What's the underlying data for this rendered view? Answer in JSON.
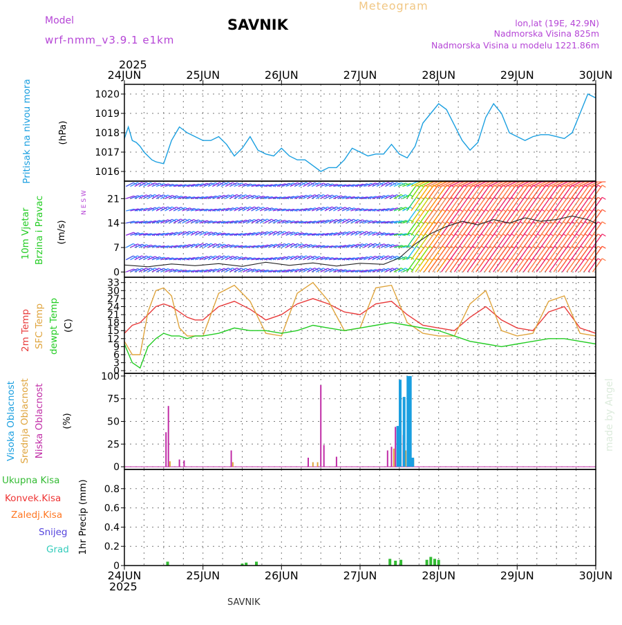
{
  "header": {
    "model_label": "Model",
    "model_name": "wrf-nmm_v3.9.1  e1km",
    "station": "SAVNIK",
    "product": "Meteogram",
    "coords": "lon,lat (19E, 42.9N)",
    "elevation": "Nadmorska Visina 825m",
    "model_elevation": "Nadmorska Visina u modelu 1221.86m",
    "year_top": "2025",
    "year_bottom": "2025",
    "footer_station": "SAVNIK",
    "credit": "made by Angel"
  },
  "colors": {
    "pressure": "#1a9fe0",
    "temp2m": "#e83a3a",
    "sfc": "#dfa43c",
    "dewpt": "#22cc22",
    "high_cloud": "#1a9fe0",
    "mid_cloud": "#dfa43c",
    "low_cloud": "#c02ca6",
    "total_precip": "#33bb33",
    "conv_precip": "#ee3333",
    "frz_precip": "#ff7722",
    "snow": "#5544dd",
    "hail": "#33ccbb",
    "label_purple": "#b545d6"
  },
  "chart_data": [
    {
      "type": "line",
      "name": "pressure",
      "x_ticks": [
        "24JUN",
        "25JUN",
        "26JUN",
        "27JUN",
        "28JUN",
        "29JUN",
        "30JUN"
      ],
      "ylabel_main": "Pritisak na nivou mora",
      "ylabel_unit": "(hPa)",
      "ylim": [
        1015.5,
        1020.5
      ],
      "y_ticks": [
        "1016",
        "1017",
        "1018",
        "1019",
        "1020"
      ],
      "y_tick_values": [
        1016,
        1017,
        1018,
        1019,
        1020
      ],
      "grid": true,
      "series": [
        {
          "key": "pressure",
          "x": [
            0,
            0.05,
            0.1,
            0.15,
            0.2,
            0.25,
            0.3,
            0.35,
            0.4,
            0.5,
            0.55,
            0.6,
            0.7,
            0.8,
            0.9,
            1.0,
            1.1,
            1.2,
            1.3,
            1.4,
            1.5,
            1.6,
            1.7,
            1.8,
            1.9,
            2.0,
            2.1,
            2.2,
            2.3,
            2.4,
            2.5,
            2.6,
            2.7,
            2.8,
            2.9,
            3.0,
            3.1,
            3.2,
            3.3,
            3.4,
            3.5,
            3.6,
            3.7,
            3.8,
            3.9,
            4.0,
            4.1,
            4.2,
            4.3,
            4.4,
            4.5,
            4.6,
            4.7,
            4.8,
            4.9,
            5.0,
            5.1,
            5.2,
            5.3,
            5.4,
            5.5,
            5.6,
            5.7,
            5.8,
            5.9,
            6.0
          ],
          "values": [
            1017.7,
            1018.3,
            1017.6,
            1017.5,
            1017.3,
            1017.0,
            1016.8,
            1016.6,
            1016.5,
            1016.4,
            1017.0,
            1017.6,
            1018.3,
            1018.0,
            1017.8,
            1017.6,
            1017.6,
            1017.8,
            1017.4,
            1016.8,
            1017.2,
            1017.8,
            1017.1,
            1016.9,
            1016.8,
            1017.2,
            1016.8,
            1016.6,
            1016.6,
            1016.3,
            1016.0,
            1016.2,
            1016.2,
            1016.6,
            1017.2,
            1017.0,
            1016.8,
            1016.9,
            1016.9,
            1017.4,
            1016.9,
            1016.7,
            1017.3,
            1018.5,
            1019.0,
            1019.5,
            1019.2,
            1018.4,
            1017.6,
            1017.1,
            1017.5,
            1018.8,
            1019.5,
            1019.0,
            1018.0,
            1017.8,
            1017.6,
            1017.8,
            1017.9,
            1017.9,
            1017.8,
            1017.7,
            1018.0,
            1019.0,
            1020.0,
            1019.8
          ]
        }
      ]
    },
    {
      "type": "line",
      "name": "wind",
      "ylabel_main": "10m Vjetar",
      "ylabel_sub": "Brzina i Pravac",
      "ylabel_unit": "(m/s)",
      "compass": "N E S W",
      "ylim": [
        -1.5,
        26
      ],
      "y_ticks": [
        "0",
        "7",
        "14",
        "21"
      ],
      "y_tick_values": [
        0,
        7,
        14,
        21
      ],
      "grid": true,
      "series": [
        {
          "key": "wind_speed",
          "x": [
            0,
            0.3,
            0.6,
            0.9,
            1.2,
            1.5,
            1.8,
            2.1,
            2.4,
            2.7,
            3.0,
            3.3,
            3.5,
            3.7,
            3.9,
            4.1,
            4.3,
            4.5,
            4.7,
            4.9,
            5.1,
            5.3,
            5.5,
            5.7,
            5.9,
            6.0
          ],
          "values": [
            2.0,
            1.5,
            2.3,
            1.8,
            2.4,
            1.6,
            2.8,
            1.9,
            2.6,
            1.7,
            2.5,
            2.2,
            4.0,
            8.0,
            11.0,
            13.0,
            14.5,
            13.5,
            15.0,
            14.0,
            15.5,
            14.5,
            15.0,
            16.0,
            15.0,
            14.0
          ]
        }
      ]
    },
    {
      "type": "line",
      "name": "temperature",
      "ylabel_main": "2m Temp",
      "ylabel_sub": "SFC Temp",
      "ylabel_sub2": "dewpt Temp",
      "ylabel_unit": "(C)",
      "ylim": [
        -1,
        35
      ],
      "y_ticks": [
        "0",
        "3",
        "6",
        "9",
        "12",
        "15",
        "18",
        "21",
        "24",
        "27",
        "30",
        "33"
      ],
      "y_tick_values": [
        0,
        3,
        6,
        9,
        12,
        15,
        18,
        21,
        24,
        27,
        30,
        33
      ],
      "grid": true,
      "series": [
        {
          "key": "temp2m",
          "x": [
            0,
            0.1,
            0.2,
            0.3,
            0.4,
            0.5,
            0.6,
            0.7,
            0.8,
            0.9,
            1.0,
            1.2,
            1.4,
            1.6,
            1.8,
            2.0,
            2.2,
            2.4,
            2.6,
            2.8,
            3.0,
            3.2,
            3.4,
            3.6,
            3.8,
            4.0,
            4.2,
            4.4,
            4.6,
            4.8,
            5.0,
            5.2,
            5.4,
            5.6,
            5.8,
            6.0
          ],
          "values": [
            14,
            17,
            18,
            21,
            24,
            25,
            24,
            22,
            20,
            19,
            19,
            24,
            26,
            23,
            19,
            21,
            25,
            27,
            25,
            22,
            21,
            25,
            26,
            21,
            17,
            16,
            15,
            20,
            24,
            19,
            16,
            15,
            22,
            24,
            16,
            14
          ]
        },
        {
          "key": "sfc",
          "x": [
            0,
            0.1,
            0.2,
            0.3,
            0.4,
            0.5,
            0.6,
            0.7,
            0.8,
            0.9,
            1.0,
            1.2,
            1.4,
            1.6,
            1.8,
            2.0,
            2.2,
            2.4,
            2.6,
            2.8,
            3.0,
            3.2,
            3.4,
            3.6,
            3.8,
            4.0,
            4.2,
            4.4,
            4.6,
            4.8,
            5.0,
            5.2,
            5.4,
            5.6,
            5.8,
            6.0
          ],
          "values": [
            11,
            6,
            6,
            22,
            30,
            31,
            28,
            16,
            13,
            13,
            13,
            29,
            32,
            26,
            14,
            13,
            29,
            33,
            26,
            15,
            16,
            31,
            32,
            18,
            14,
            13,
            13,
            25,
            30,
            15,
            13,
            14,
            26,
            28,
            14,
            13
          ]
        },
        {
          "key": "dewpt",
          "x": [
            0,
            0.1,
            0.2,
            0.3,
            0.4,
            0.5,
            0.6,
            0.7,
            0.8,
            0.9,
            1.0,
            1.2,
            1.4,
            1.6,
            1.8,
            2.0,
            2.2,
            2.4,
            2.6,
            2.8,
            3.0,
            3.2,
            3.4,
            3.6,
            3.8,
            4.0,
            4.2,
            4.4,
            4.6,
            4.8,
            5.0,
            5.2,
            5.4,
            5.6,
            5.8,
            6.0
          ],
          "values": [
            10,
            3,
            1,
            9,
            12,
            14,
            13,
            13,
            12,
            13,
            13,
            14,
            16,
            15,
            15,
            14,
            15,
            17,
            16,
            15,
            16,
            17,
            18,
            17,
            16,
            15,
            13,
            11,
            10,
            9,
            10,
            11,
            12,
            12,
            11,
            10
          ]
        }
      ]
    },
    {
      "type": "bar",
      "name": "cloud",
      "ylabel_main": "Visoka Oblacnost",
      "ylabel_sub": "Srednja Oblacnost",
      "ylabel_sub2": "Niska Oblacnost",
      "ylabel_unit": "(%)",
      "ylim": [
        -3,
        103
      ],
      "y_ticks": [
        "0",
        "25",
        "50",
        "75",
        "100"
      ],
      "y_tick_values": [
        0,
        25,
        50,
        75,
        100
      ],
      "grid": true,
      "series": [
        {
          "key": "low_cloud",
          "x": [
            0.53,
            0.56,
            0.7,
            0.76,
            1.36,
            2.34,
            2.5,
            2.54,
            2.7,
            3.35,
            3.4,
            3.45,
            3.55,
            3.62
          ],
          "values": [
            38,
            67,
            8,
            7,
            18,
            10,
            90,
            24,
            11,
            18,
            22,
            44,
            35,
            12
          ]
        },
        {
          "key": "mid_cloud",
          "x": [
            0.58,
            1.38,
            2.4,
            2.46,
            3.43,
            3.52,
            3.58,
            3.68
          ],
          "values": [
            6,
            5,
            5,
            5,
            20,
            40,
            18,
            8
          ]
        },
        {
          "key": "high_cloud",
          "x": [
            3.48,
            3.51,
            3.56,
            3.61,
            3.64,
            3.67
          ],
          "values": [
            45,
            96,
            77,
            100,
            100,
            10
          ]
        }
      ]
    },
    {
      "type": "bar",
      "name": "precipitation",
      "legend_total": "Ukupna Kisa",
      "legend_conv": "Konvek.Kisa",
      "legend_frz": "Zaledj.Kisa",
      "legend_snow": "Snijeg",
      "legend_hail": "Grad",
      "ylabel_unit": "1hr Precip (mm)",
      "ylim": [
        0,
        1.0
      ],
      "y_ticks": [
        "0",
        "0.2",
        "0.4",
        "0.6",
        "0.8"
      ],
      "y_tick_values": [
        0,
        0.2,
        0.4,
        0.6,
        0.8
      ],
      "grid": true,
      "series": [
        {
          "key": "total_precip",
          "x": [
            0.55,
            1.5,
            1.55,
            1.68,
            3.38,
            3.45,
            3.52,
            3.85,
            3.9,
            3.95,
            4.0
          ],
          "values": [
            0.04,
            0.02,
            0.03,
            0.04,
            0.07,
            0.05,
            0.06,
            0.06,
            0.09,
            0.07,
            0.06
          ]
        }
      ]
    }
  ]
}
